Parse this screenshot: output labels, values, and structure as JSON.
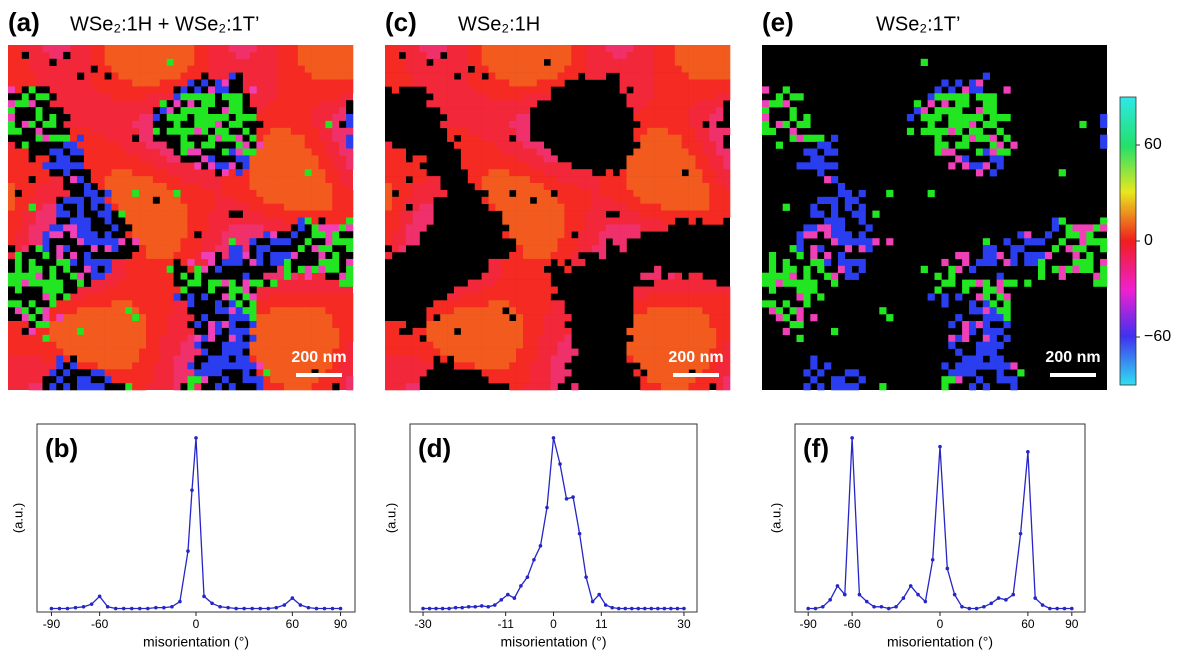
{
  "maps": [
    {
      "label": "(a)",
      "title": "WSe₂:1H + WSe₂:1T’",
      "scale_bar": "200 nm"
    },
    {
      "label": "(c)",
      "title": "WSe₂:1H",
      "scale_bar": "200 nm"
    },
    {
      "label": "(e)",
      "title": "WSe₂:1T’",
      "scale_bar": "200 nm"
    }
  ],
  "colorbar": {
    "ylim": [
      -90,
      90
    ],
    "yticks": [
      60,
      0,
      {
        "value": -60,
        "label": "−60"
      }
    ]
  },
  "chart_data": [
    {
      "type": "line",
      "label": "(b)",
      "x_label": "misorientation (°)",
      "y_label": "(a.u.)",
      "color": "#2626c8",
      "x": [
        -90,
        -85,
        -80,
        -75,
        -70,
        -65,
        -60,
        -55,
        -50,
        -45,
        -40,
        -35,
        -30,
        -25,
        -20,
        -15,
        -10,
        -5,
        -2.5,
        0,
        5,
        10,
        15,
        20,
        25,
        30,
        35,
        40,
        45,
        50,
        55,
        60,
        65,
        70,
        75,
        80,
        85,
        90
      ],
      "values": [
        0.02,
        0.02,
        0.02,
        0.025,
        0.03,
        0.045,
        0.09,
        0.03,
        0.02,
        0.02,
        0.02,
        0.02,
        0.02,
        0.025,
        0.025,
        0.03,
        0.06,
        0.35,
        0.7,
        1.0,
        0.09,
        0.05,
        0.03,
        0.025,
        0.02,
        0.02,
        0.02,
        0.02,
        0.02,
        0.025,
        0.04,
        0.08,
        0.04,
        0.025,
        0.02,
        0.02,
        0.02,
        0.02
      ],
      "xlim": [
        -99,
        99
      ],
      "ylim": [
        0,
        1.08
      ],
      "xticks": [
        -90,
        -60,
        0,
        60,
        90
      ]
    },
    {
      "type": "line",
      "label": "(d)",
      "x_label": "misorientation (°)",
      "y_label": "(a.u.)",
      "color": "#2626c8",
      "x": [
        -30,
        -28.5,
        -27,
        -25.5,
        -24,
        -22.5,
        -21,
        -19.5,
        -18,
        -16.5,
        -15,
        -13.5,
        -12,
        -10.5,
        -9,
        -7.5,
        -6,
        -4.5,
        -3,
        -1.5,
        0,
        1.5,
        3,
        4.5,
        6,
        7.5,
        9,
        10.5,
        12,
        13.5,
        15,
        16.5,
        18,
        19.5,
        21,
        22.5,
        24,
        25.5,
        27,
        28.5,
        30
      ],
      "values": [
        0.02,
        0.02,
        0.02,
        0.02,
        0.02,
        0.025,
        0.025,
        0.03,
        0.03,
        0.035,
        0.03,
        0.04,
        0.07,
        0.1,
        0.08,
        0.15,
        0.2,
        0.3,
        0.38,
        0.6,
        1.0,
        0.85,
        0.65,
        0.66,
        0.45,
        0.2,
        0.06,
        0.1,
        0.04,
        0.025,
        0.02,
        0.02,
        0.02,
        0.02,
        0.02,
        0.02,
        0.02,
        0.02,
        0.02,
        0.02,
        0.02
      ],
      "xlim": [
        -33,
        33
      ],
      "ylim": [
        0,
        1.08
      ],
      "xticks": [
        -30,
        -11,
        0,
        11,
        30
      ]
    },
    {
      "type": "line",
      "label": "(f)",
      "x_label": "misorientation (°)",
      "y_label": "(a.u.)",
      "color": "#2626c8",
      "x": [
        -90,
        -85,
        -80,
        -75,
        -70,
        -65,
        -60,
        -55,
        -50,
        -45,
        -40,
        -35,
        -30,
        -25,
        -20,
        -15,
        -10,
        -5,
        0,
        5,
        10,
        15,
        20,
        25,
        30,
        35,
        40,
        45,
        50,
        55,
        60,
        65,
        70,
        75,
        80,
        85,
        90
      ],
      "values": [
        0.02,
        0.02,
        0.03,
        0.07,
        0.15,
        0.1,
        1.0,
        0.1,
        0.06,
        0.03,
        0.03,
        0.02,
        0.03,
        0.08,
        0.15,
        0.1,
        0.06,
        0.3,
        0.95,
        0.25,
        0.1,
        0.03,
        0.02,
        0.02,
        0.03,
        0.05,
        0.08,
        0.07,
        0.1,
        0.45,
        0.92,
        0.08,
        0.04,
        0.02,
        0.02,
        0.02,
        0.02
      ],
      "xlim": [
        -99,
        99
      ],
      "ylim": [
        0,
        1.08
      ],
      "xticks": [
        -90,
        -60,
        0,
        60,
        90
      ]
    }
  ]
}
